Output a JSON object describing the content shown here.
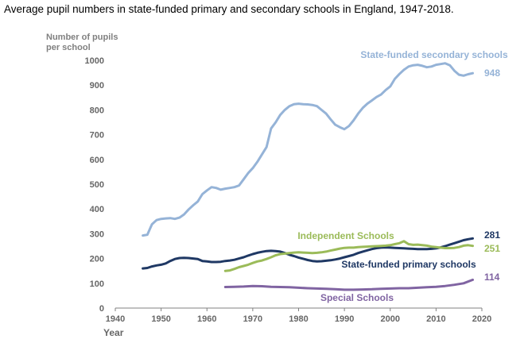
{
  "chart_data": {
    "type": "line",
    "title": "Average pupil numbers in state-funded primary and secondary schools in England, 1947-2018.",
    "ylabel_lines": [
      "Number of pupils",
      "per school"
    ],
    "xlabel": "Year",
    "xlim": [
      1940,
      2020
    ],
    "ylim": [
      0,
      1000
    ],
    "x_ticks": [
      1940,
      1950,
      1960,
      1970,
      1980,
      1990,
      2000,
      2010,
      2020
    ],
    "y_ticks": [
      0,
      100,
      200,
      300,
      400,
      500,
      600,
      700,
      800,
      900,
      1000
    ],
    "grid": false,
    "series": [
      {
        "name": "State-funded secondary schools",
        "color": "#95B3D7",
        "end_value_label": "948",
        "points": [
          [
            1946,
            293
          ],
          [
            1947,
            296
          ],
          [
            1948,
            338
          ],
          [
            1949,
            355
          ],
          [
            1950,
            360
          ],
          [
            1951,
            362
          ],
          [
            1952,
            363
          ],
          [
            1953,
            360
          ],
          [
            1954,
            365
          ],
          [
            1955,
            378
          ],
          [
            1956,
            398
          ],
          [
            1957,
            415
          ],
          [
            1958,
            430
          ],
          [
            1959,
            460
          ],
          [
            1960,
            475
          ],
          [
            1961,
            488
          ],
          [
            1962,
            485
          ],
          [
            1963,
            478
          ],
          [
            1964,
            482
          ],
          [
            1965,
            485
          ],
          [
            1966,
            488
          ],
          [
            1967,
            495
          ],
          [
            1968,
            520
          ],
          [
            1969,
            545
          ],
          [
            1970,
            565
          ],
          [
            1971,
            590
          ],
          [
            1972,
            620
          ],
          [
            1973,
            650
          ],
          [
            1974,
            725
          ],
          [
            1975,
            750
          ],
          [
            1976,
            780
          ],
          [
            1977,
            800
          ],
          [
            1978,
            815
          ],
          [
            1979,
            823
          ],
          [
            1980,
            825
          ],
          [
            1981,
            823
          ],
          [
            1982,
            822
          ],
          [
            1983,
            820
          ],
          [
            1984,
            815
          ],
          [
            1985,
            800
          ],
          [
            1986,
            785
          ],
          [
            1987,
            762
          ],
          [
            1988,
            740
          ],
          [
            1989,
            730
          ],
          [
            1990,
            722
          ],
          [
            1991,
            735
          ],
          [
            1992,
            758
          ],
          [
            1993,
            785
          ],
          [
            1994,
            808
          ],
          [
            1995,
            825
          ],
          [
            1996,
            838
          ],
          [
            1997,
            852
          ],
          [
            1998,
            862
          ],
          [
            1999,
            880
          ],
          [
            2000,
            895
          ],
          [
            2001,
            925
          ],
          [
            2002,
            945
          ],
          [
            2003,
            962
          ],
          [
            2004,
            975
          ],
          [
            2005,
            980
          ],
          [
            2006,
            982
          ],
          [
            2007,
            978
          ],
          [
            2008,
            972
          ],
          [
            2009,
            975
          ],
          [
            2010,
            982
          ],
          [
            2011,
            985
          ],
          [
            2012,
            988
          ],
          [
            2013,
            980
          ],
          [
            2014,
            958
          ],
          [
            2015,
            942
          ],
          [
            2016,
            938
          ],
          [
            2017,
            944
          ],
          [
            2018,
            948
          ]
        ]
      },
      {
        "name": "State-funded primary schools",
        "color": "#1F3864",
        "end_value_label": "281",
        "points": [
          [
            1946,
            160
          ],
          [
            1947,
            162
          ],
          [
            1948,
            168
          ],
          [
            1949,
            172
          ],
          [
            1950,
            175
          ],
          [
            1951,
            180
          ],
          [
            1952,
            190
          ],
          [
            1953,
            198
          ],
          [
            1954,
            202
          ],
          [
            1955,
            203
          ],
          [
            1956,
            202
          ],
          [
            1957,
            200
          ],
          [
            1958,
            198
          ],
          [
            1959,
            190
          ],
          [
            1960,
            188
          ],
          [
            1961,
            186
          ],
          [
            1962,
            186
          ],
          [
            1963,
            187
          ],
          [
            1964,
            190
          ],
          [
            1965,
            192
          ],
          [
            1966,
            195
          ],
          [
            1967,
            200
          ],
          [
            1968,
            205
          ],
          [
            1969,
            212
          ],
          [
            1970,
            218
          ],
          [
            1971,
            223
          ],
          [
            1972,
            227
          ],
          [
            1973,
            230
          ],
          [
            1974,
            231
          ],
          [
            1975,
            230
          ],
          [
            1976,
            228
          ],
          [
            1977,
            222
          ],
          [
            1978,
            215
          ],
          [
            1979,
            210
          ],
          [
            1980,
            204
          ],
          [
            1981,
            199
          ],
          [
            1982,
            194
          ],
          [
            1983,
            190
          ],
          [
            1984,
            188
          ],
          [
            1985,
            189
          ],
          [
            1986,
            191
          ],
          [
            1987,
            193
          ],
          [
            1988,
            196
          ],
          [
            1989,
            200
          ],
          [
            1990,
            205
          ],
          [
            1991,
            210
          ],
          [
            1992,
            215
          ],
          [
            1993,
            222
          ],
          [
            1994,
            228
          ],
          [
            1995,
            233
          ],
          [
            1996,
            238
          ],
          [
            1997,
            242
          ],
          [
            1998,
            244
          ],
          [
            1999,
            245
          ],
          [
            2000,
            244
          ],
          [
            2001,
            243
          ],
          [
            2002,
            242
          ],
          [
            2003,
            241
          ],
          [
            2004,
            240
          ],
          [
            2005,
            239
          ],
          [
            2006,
            238
          ],
          [
            2007,
            238
          ],
          [
            2008,
            238
          ],
          [
            2009,
            239
          ],
          [
            2010,
            241
          ],
          [
            2011,
            245
          ],
          [
            2012,
            250
          ],
          [
            2013,
            256
          ],
          [
            2014,
            262
          ],
          [
            2015,
            268
          ],
          [
            2016,
            274
          ],
          [
            2017,
            278
          ],
          [
            2018,
            281
          ]
        ]
      },
      {
        "name": "Independent Schools",
        "color": "#9BBB59",
        "end_value_label": "251",
        "points": [
          [
            1964,
            150
          ],
          [
            1965,
            152
          ],
          [
            1966,
            158
          ],
          [
            1967,
            165
          ],
          [
            1968,
            170
          ],
          [
            1969,
            175
          ],
          [
            1970,
            182
          ],
          [
            1971,
            188
          ],
          [
            1972,
            192
          ],
          [
            1973,
            198
          ],
          [
            1974,
            205
          ],
          [
            1975,
            213
          ],
          [
            1976,
            218
          ],
          [
            1977,
            220
          ],
          [
            1978,
            222
          ],
          [
            1979,
            224
          ],
          [
            1980,
            225
          ],
          [
            1981,
            224
          ],
          [
            1982,
            223
          ],
          [
            1983,
            222
          ],
          [
            1984,
            223
          ],
          [
            1985,
            225
          ],
          [
            1986,
            228
          ],
          [
            1987,
            232
          ],
          [
            1988,
            236
          ],
          [
            1989,
            240
          ],
          [
            1990,
            243
          ],
          [
            1991,
            244
          ],
          [
            1992,
            244
          ],
          [
            1993,
            246
          ],
          [
            1994,
            247
          ],
          [
            1995,
            248
          ],
          [
            1996,
            249
          ],
          [
            1997,
            250
          ],
          [
            1998,
            251
          ],
          [
            1999,
            252
          ],
          [
            2000,
            254
          ],
          [
            2001,
            258
          ],
          [
            2002,
            262
          ],
          [
            2003,
            270
          ],
          [
            2004,
            258
          ],
          [
            2005,
            255
          ],
          [
            2006,
            256
          ],
          [
            2007,
            254
          ],
          [
            2008,
            252
          ],
          [
            2009,
            248
          ],
          [
            2010,
            246
          ],
          [
            2011,
            244
          ],
          [
            2012,
            242
          ],
          [
            2013,
            242
          ],
          [
            2014,
            243
          ],
          [
            2015,
            246
          ],
          [
            2016,
            252
          ],
          [
            2017,
            254
          ],
          [
            2018,
            251
          ]
        ]
      },
      {
        "name": "Special Schools",
        "color": "#8064A2",
        "end_value_label": "114",
        "points": [
          [
            1964,
            85
          ],
          [
            1966,
            86
          ],
          [
            1968,
            87
          ],
          [
            1970,
            89
          ],
          [
            1972,
            88
          ],
          [
            1974,
            86
          ],
          [
            1976,
            85
          ],
          [
            1978,
            84
          ],
          [
            1980,
            82
          ],
          [
            1982,
            80
          ],
          [
            1984,
            79
          ],
          [
            1986,
            78
          ],
          [
            1988,
            76
          ],
          [
            1990,
            74
          ],
          [
            1992,
            74
          ],
          [
            1994,
            75
          ],
          [
            1996,
            76
          ],
          [
            1998,
            78
          ],
          [
            2000,
            79
          ],
          [
            2002,
            80
          ],
          [
            2004,
            80
          ],
          [
            2006,
            82
          ],
          [
            2008,
            84
          ],
          [
            2010,
            86
          ],
          [
            2012,
            89
          ],
          [
            2014,
            94
          ],
          [
            2016,
            100
          ],
          [
            2018,
            114
          ]
        ]
      }
    ]
  }
}
